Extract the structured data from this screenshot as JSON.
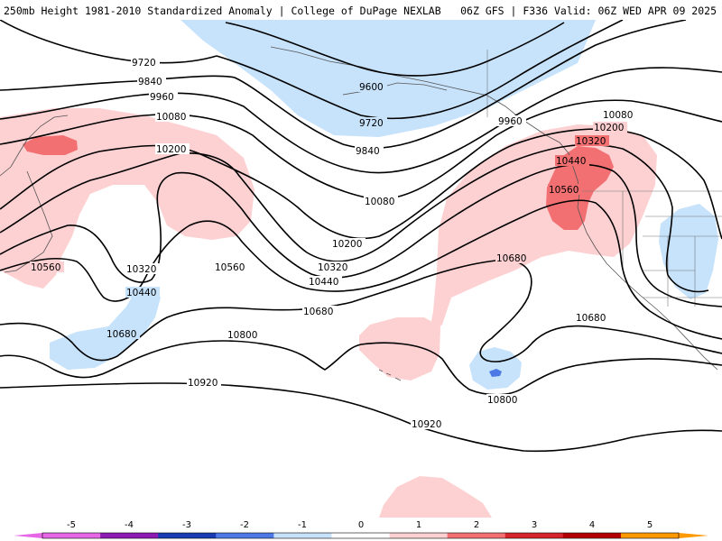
{
  "header": {
    "title_left": "250mb Height 1981-2010 Standardized Anomaly | College of DuPage NEXLAB",
    "title_right": "06Z GFS | F336 Valid: 06Z WED APR 09 2025"
  },
  "colors": {
    "anom_neg5": "#e666e6",
    "anom_neg4": "#8c1ab3",
    "anom_neg3": "#1a3cb3",
    "anom_neg2": "#4d79e6",
    "anom_neg1": "#c7e2fb",
    "anom_0": "#ffffff",
    "anom_pos1": "#fdd0d2",
    "anom_pos2": "#f27072",
    "anom_pos3": "#d6242c",
    "anom_pos4": "#b30000",
    "anom_pos5": "#ff9900",
    "contour": "#000000",
    "coastline": "#555555"
  },
  "contour_labels": {
    "c9720_a": "9720",
    "c9840_a": "9840",
    "c9960_a": "9960",
    "c10080_a": "10080",
    "c10200_a": "10200",
    "c9600": "9600",
    "c9720_b": "9720",
    "c9840_b": "9840",
    "c9960_b": "9960",
    "c10080_b": "10080",
    "c10080_c": "10080",
    "c10200_b": "10200",
    "c10200_c": "10200",
    "c10320_a": "10320",
    "c10320_b": "10320",
    "c10320_c": "10320",
    "c10440_a": "10440",
    "c10440_b": "10440",
    "c10440_c": "10440",
    "c10560_a": "10560",
    "c10560_b": "10560",
    "c10560_c": "10560",
    "c10680_a": "10680",
    "c10680_b": "10680",
    "c10680_c": "10680",
    "c10680_d": "10680",
    "c10800_a": "10800",
    "c10800_b": "10800",
    "c10920_a": "10920",
    "c10920_b": "10920"
  },
  "colorbar": {
    "ticks": [
      "-5",
      "-4",
      "-3",
      "-2",
      "-1",
      "0",
      "1",
      "2",
      "3",
      "4",
      "5"
    ]
  }
}
